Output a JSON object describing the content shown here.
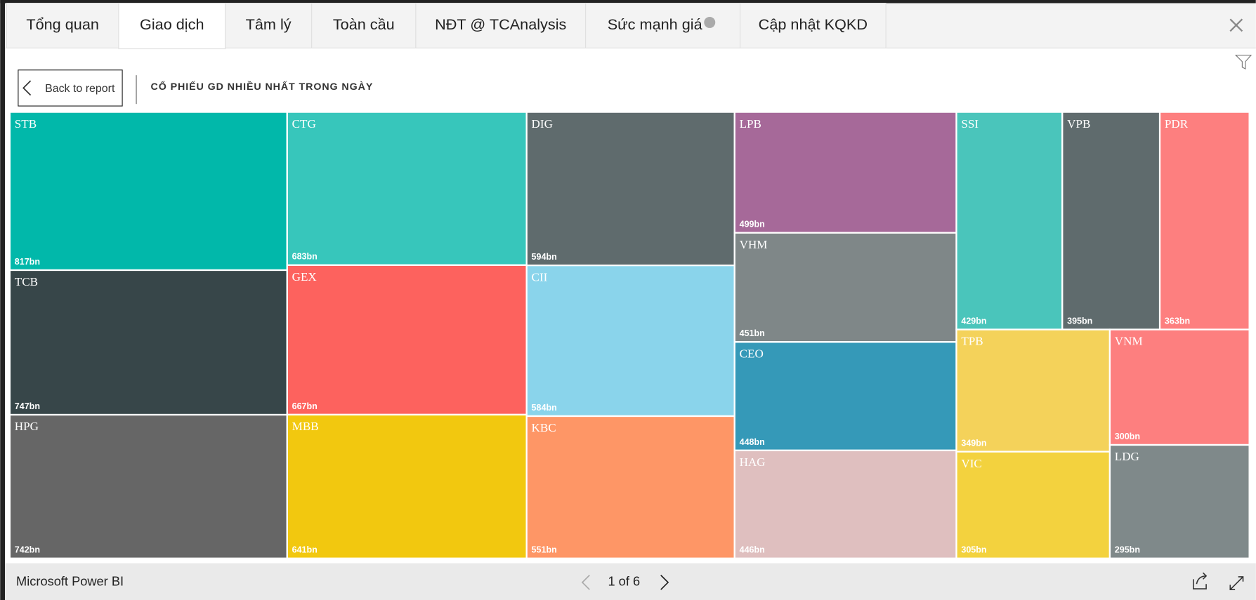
{
  "tabs": [
    "Tổng quan",
    "Giao dịch",
    "Tâm lý",
    "Toàn cầu",
    "NĐT @ TCAnalysis",
    "Sức mạnh giá",
    "Cập nhật KQKD"
  ],
  "back_button": "Back to report",
  "chart_data": {
    "type": "treemap",
    "title": "CỔ PHIẾU GD NHIỀU NHẤT TRONG NGÀY",
    "categories": [
      "STB",
      "TCB",
      "HPG",
      "CTG",
      "GEX",
      "MBB",
      "DIG",
      "CII",
      "KBC",
      "LPB",
      "VHM",
      "CEO",
      "HAG",
      "SSI",
      "VPB",
      "PDR",
      "TPB",
      "VIC",
      "VNM",
      "LDG"
    ],
    "values": [
      817,
      747,
      742,
      683,
      667,
      641,
      594,
      584,
      551,
      499,
      451,
      448,
      446,
      429,
      395,
      363,
      349,
      305,
      300,
      295
    ],
    "value_labels": [
      "817bn",
      "747bn",
      "742bn",
      "683bn",
      "667bn",
      "641bn",
      "594bn",
      "584bn",
      "551bn",
      "499bn",
      "451bn",
      "448bn",
      "446bn",
      "429bn",
      "395bn",
      "363bn",
      "349bn",
      "305bn",
      "300bn",
      "295bn"
    ],
    "colors": [
      "#01b8aa",
      "#374649",
      "#666666",
      "#37c6bb",
      "#fd625e",
      "#f2c80f",
      "#5f6b6d",
      "#8ad4eb",
      "#fe9666",
      "#a66999",
      "#7f8788",
      "#3599b8",
      "#dfbfbf",
      "#4ac5bb",
      "#5f6b6d",
      "#fd7f7f",
      "#f4d25a",
      "#f3d23e",
      "#fd7f7f",
      "#7f898a"
    ]
  },
  "footer": {
    "brand": "Microsoft Power BI",
    "pager": "1 of 6"
  }
}
